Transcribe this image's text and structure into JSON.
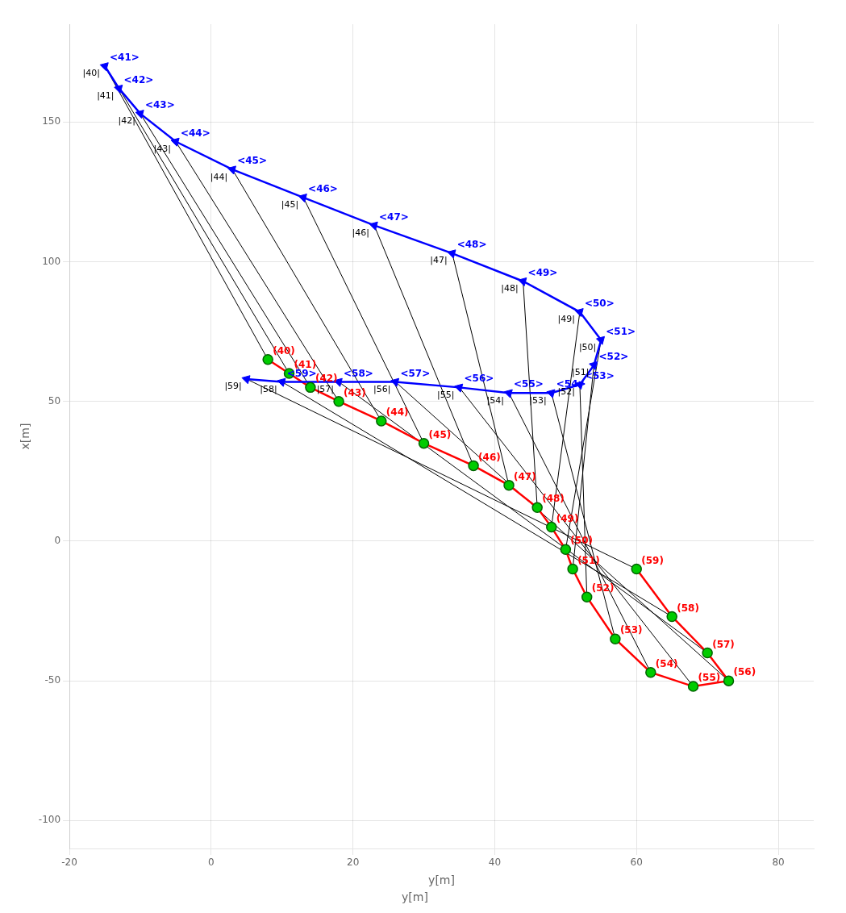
{
  "chart_data": {
    "type": "line",
    "xlabel": "y[m]",
    "ylabel": "x[m]",
    "annotations": [
      {
        "text": "y[m]"
      }
    ],
    "xlim": [
      -20,
      85
    ],
    "xticks": [
      -20,
      0,
      20,
      40,
      60,
      80
    ],
    "ylim": [
      -110,
      185
    ],
    "yticks": [
      -100,
      -50,
      0,
      50,
      100,
      150
    ],
    "grid": true,
    "series": [
      {
        "type": "line",
        "color": "#0000FF",
        "marker": "triangle",
        "line_style": "solid",
        "x": [
          -15,
          -13,
          -10,
          -5,
          3,
          13,
          23,
          34,
          44,
          52,
          55,
          54,
          52,
          48,
          42,
          35,
          26,
          18,
          10,
          5
        ],
        "values": [
          170,
          162,
          153,
          143,
          133,
          123,
          113,
          103,
          93,
          82,
          72,
          63,
          56,
          53,
          53,
          55,
          57,
          57,
          57,
          58
        ],
        "labels": [
          "<41>",
          "<42>",
          "<43>",
          "<44>",
          "<45>",
          "<46>",
          "<47>",
          "<48>",
          "<49>",
          "<50>",
          "<51>",
          "<52>",
          "<53>",
          "<54>",
          "<55>",
          "<56>",
          "<57>",
          "<58>",
          "<59>",
          null
        ]
      },
      {
        "type": "line",
        "color": "#FF0000",
        "marker": "none",
        "line_style": "solid",
        "x": [
          8,
          11,
          14,
          18,
          24,
          30,
          37,
          42,
          46,
          48,
          50,
          51,
          53,
          57,
          62,
          68,
          73,
          70,
          65,
          60
        ],
        "values": [
          65,
          60,
          55,
          50,
          43,
          35,
          27,
          20,
          12,
          5,
          -3,
          -10,
          -20,
          -35,
          -47,
          -52,
          -50,
          -40,
          -27,
          -10
        ],
        "labels": [
          "(40)",
          "(41)",
          "(42)",
          "(43)",
          "(44)",
          "(45)",
          "(46)",
          "(47)",
          "(48)",
          "(49)",
          "(50)",
          "(51)",
          "(52)",
          "(53)",
          "(54)",
          "(55)",
          "(56)",
          "(57)",
          "(58)",
          "(59)"
        ]
      },
      {
        "type": "scatter",
        "color": "#00CC00",
        "marker": "circle",
        "x": [
          8,
          11,
          14,
          18,
          24,
          30,
          37,
          42,
          46,
          48,
          50,
          51,
          53,
          57,
          62,
          68,
          73,
          70,
          65,
          60
        ],
        "values": [
          65,
          60,
          55,
          50,
          43,
          35,
          27,
          20,
          12,
          5,
          -3,
          -10,
          -20,
          -35,
          -47,
          -52,
          -50,
          -40,
          -27,
          -10
        ]
      },
      {
        "type": "line",
        "color": "#000000",
        "marker": "none",
        "line_style": "solid",
        "x": [
          -15,
          8
        ],
        "values": [
          170,
          65
        ],
        "labels": [
          "|40|",
          null
        ]
      },
      {
        "type": "line",
        "color": "#000000",
        "marker": "none",
        "line_style": "solid",
        "x": [
          -13,
          11
        ],
        "values": [
          162,
          60
        ],
        "labels": [
          "|41|",
          null
        ]
      },
      {
        "type": "line",
        "color": "#000000",
        "marker": "none",
        "line_style": "solid",
        "x": [
          -10,
          14
        ],
        "values": [
          153,
          55
        ],
        "labels": [
          "|42|",
          null
        ]
      },
      {
        "type": "line",
        "color": "#000000",
        "marker": "none",
        "line_style": "solid",
        "x": [
          -5,
          18
        ],
        "values": [
          143,
          50
        ],
        "labels": [
          "|43|",
          null
        ]
      },
      {
        "type": "line",
        "color": "#000000",
        "marker": "none",
        "line_style": "solid",
        "x": [
          3,
          24
        ],
        "values": [
          133,
          43
        ],
        "labels": [
          "|44|",
          null
        ]
      },
      {
        "type": "line",
        "color": "#000000",
        "marker": "none",
        "line_style": "solid",
        "x": [
          13,
          30
        ],
        "values": [
          123,
          35
        ],
        "labels": [
          "|45|",
          null
        ]
      },
      {
        "type": "line",
        "color": "#000000",
        "marker": "none",
        "line_style": "solid",
        "x": [
          23,
          37
        ],
        "values": [
          113,
          27
        ],
        "labels": [
          "|46|",
          null
        ]
      },
      {
        "type": "line",
        "color": "#000000",
        "marker": "none",
        "line_style": "solid",
        "x": [
          34,
          42
        ],
        "values": [
          103,
          20
        ],
        "labels": [
          "|47|",
          null
        ]
      },
      {
        "type": "line",
        "color": "#000000",
        "marker": "none",
        "line_style": "solid",
        "x": [
          44,
          46
        ],
        "values": [
          93,
          12
        ],
        "labels": [
          "|48|",
          null
        ]
      },
      {
        "type": "line",
        "color": "#000000",
        "marker": "none",
        "line_style": "solid",
        "x": [
          52,
          48
        ],
        "values": [
          82,
          5
        ],
        "labels": [
          "|49|",
          null
        ]
      },
      {
        "type": "line",
        "color": "#000000",
        "marker": "none",
        "line_style": "solid",
        "x": [
          55,
          50
        ],
        "values": [
          72,
          -3
        ],
        "labels": [
          "|50|",
          null
        ]
      },
      {
        "type": "line",
        "color": "#000000",
        "marker": "none",
        "line_style": "solid",
        "x": [
          54,
          51
        ],
        "values": [
          63,
          -10
        ],
        "labels": [
          "|51|",
          null
        ]
      },
      {
        "type": "line",
        "color": "#000000",
        "marker": "none",
        "line_style": "solid",
        "x": [
          52,
          53
        ],
        "values": [
          56,
          -20
        ],
        "labels": [
          "|52|",
          null
        ]
      },
      {
        "type": "line",
        "color": "#000000",
        "marker": "none",
        "line_style": "solid",
        "x": [
          48,
          57
        ],
        "values": [
          53,
          -35
        ],
        "labels": [
          "|53|",
          null
        ]
      },
      {
        "type": "line",
        "color": "#000000",
        "marker": "none",
        "line_style": "solid",
        "x": [
          42,
          62
        ],
        "values": [
          53,
          -47
        ],
        "labels": [
          "|54|",
          null
        ]
      },
      {
        "type": "line",
        "color": "#000000",
        "marker": "none",
        "line_style": "solid",
        "x": [
          35,
          68
        ],
        "values": [
          55,
          -52
        ],
        "labels": [
          "|55|",
          null
        ]
      },
      {
        "type": "line",
        "color": "#000000",
        "marker": "none",
        "line_style": "solid",
        "x": [
          26,
          73
        ],
        "values": [
          57,
          -50
        ],
        "labels": [
          "|56|",
          null
        ]
      },
      {
        "type": "line",
        "color": "#000000",
        "marker": "none",
        "line_style": "solid",
        "x": [
          18,
          70
        ],
        "values": [
          57,
          -40
        ],
        "labels": [
          "|57|",
          null
        ]
      },
      {
        "type": "line",
        "color": "#000000",
        "marker": "none",
        "line_style": "solid",
        "x": [
          10,
          65
        ],
        "values": [
          57,
          -27
        ],
        "labels": [
          "|58|",
          null
        ]
      },
      {
        "type": "line",
        "color": "#000000",
        "marker": "none",
        "line_style": "solid",
        "x": [
          5,
          60
        ],
        "values": [
          58,
          -10
        ],
        "labels": [
          "|59|",
          null
        ]
      }
    ]
  }
}
